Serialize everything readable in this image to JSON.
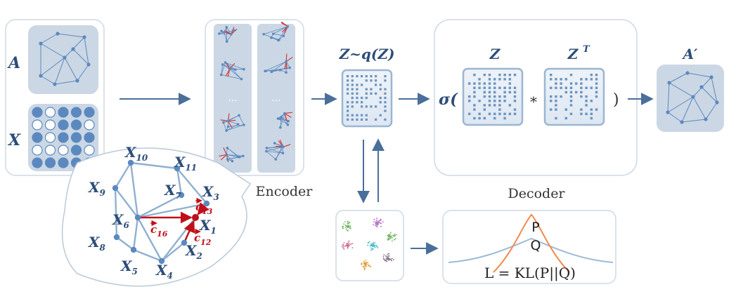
{
  "input": {
    "adjacency_label": "A",
    "feature_label": "X",
    "feature_matrix": [
      [
        1,
        0,
        1,
        1,
        1
      ],
      [
        0,
        0,
        1,
        1,
        0
      ],
      [
        1,
        0,
        1,
        1,
        1
      ],
      [
        0,
        0,
        0,
        1,
        0
      ],
      [
        1,
        1,
        1,
        1,
        1
      ]
    ]
  },
  "zoom": {
    "nodes": [
      "X",
      "X",
      "X",
      "X",
      "X",
      "X",
      "X",
      "X",
      "X",
      "X",
      "X"
    ],
    "subscripts": [
      "1",
      "2",
      "3",
      "4",
      "5",
      "6",
      "7",
      "8",
      "9",
      "10",
      "11"
    ],
    "vectors": [
      {
        "label": "c",
        "sub": "13"
      },
      {
        "label": "c",
        "sub": "12"
      },
      {
        "label": "c",
        "sub": "16"
      }
    ],
    "dots": "···"
  },
  "encoder": {
    "label": "Encoder"
  },
  "latent": {
    "label": "Z~q(Z)"
  },
  "decoder": {
    "label": "Decoder",
    "sigma": "σ(",
    "close": ")",
    "z_label": "Z",
    "zt_label": "Z",
    "zt_sup": "T",
    "op": "*"
  },
  "output": {
    "label": "A′"
  },
  "kl": {
    "p_label": "P",
    "q_label": "Q",
    "loss": "L = KL(P||Q)"
  },
  "colors": {
    "node": "#5b89bf",
    "panel": "#cbd7e4",
    "arrow": "#4a6f9a",
    "vector": "#c0101a",
    "p_curve": "#f08a4b",
    "q_curve": "#9dbbd6"
  }
}
